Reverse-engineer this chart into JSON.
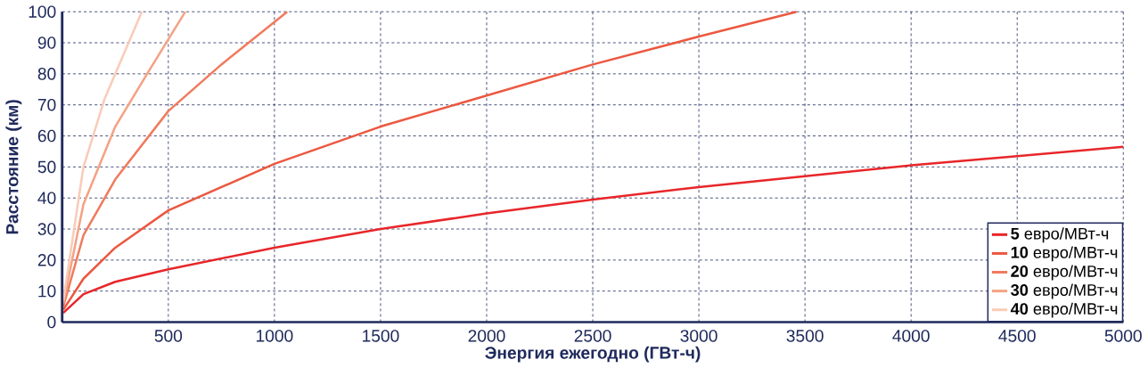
{
  "chart_data": {
    "type": "line",
    "xlabel": "Энергия ежегодно (ГВт-ч)",
    "ylabel": "Расстояние (км)",
    "xlim": [
      0,
      5000
    ],
    "ylim": [
      0,
      100
    ],
    "xticks": [
      {
        "value": 0,
        "label": null
      },
      500,
      1000,
      1500,
      2000,
      2500,
      3000,
      3500,
      4000,
      4500,
      5000
    ],
    "yticks": [
      0,
      10,
      20,
      30,
      40,
      50,
      60,
      70,
      80,
      90,
      100
    ],
    "grid": true,
    "legend": "bottom right",
    "line_style": "solid",
    "marker": "none",
    "series": [
      {
        "name": "**5** евро/МВт-ч",
        "color": "#e8262a",
        "x": [
          5,
          100,
          250,
          500,
          750,
          1000,
          1500,
          2000,
          2500,
          3000,
          3500,
          4000,
          4500,
          5000
        ],
        "values": [
          3,
          9,
          13,
          17,
          20.5,
          24,
          30,
          35,
          39.5,
          43.5,
          47,
          50.5,
          53.5,
          56.5
        ]
      },
      {
        "name": "**10** евро/МВт-ч",
        "color": "#ec5840",
        "x": [
          5,
          100,
          250,
          500,
          1000,
          1500,
          2000,
          2500,
          3000,
          3460
        ],
        "values": [
          4,
          14,
          24,
          36,
          51,
          63,
          73,
          83,
          92,
          100
        ]
      },
      {
        "name": "**20** евро/МВт-ч",
        "color": "#ef7b5e",
        "x": [
          5,
          100,
          250,
          500,
          750,
          1060
        ],
        "values": [
          5,
          28,
          46,
          68,
          83,
          100
        ]
      },
      {
        "name": "**30** евро/МВт-ч",
        "color": "#f4a284",
        "x": [
          5,
          100,
          250,
          400,
          580
        ],
        "values": [
          6,
          38,
          63,
          80,
          100
        ]
      },
      {
        "name": "**40** евро/МВт-ч",
        "color": "#f9cbb9",
        "x": [
          5,
          100,
          200,
          300,
          375
        ],
        "values": [
          7,
          50,
          72,
          88,
          100
        ]
      }
    ]
  }
}
